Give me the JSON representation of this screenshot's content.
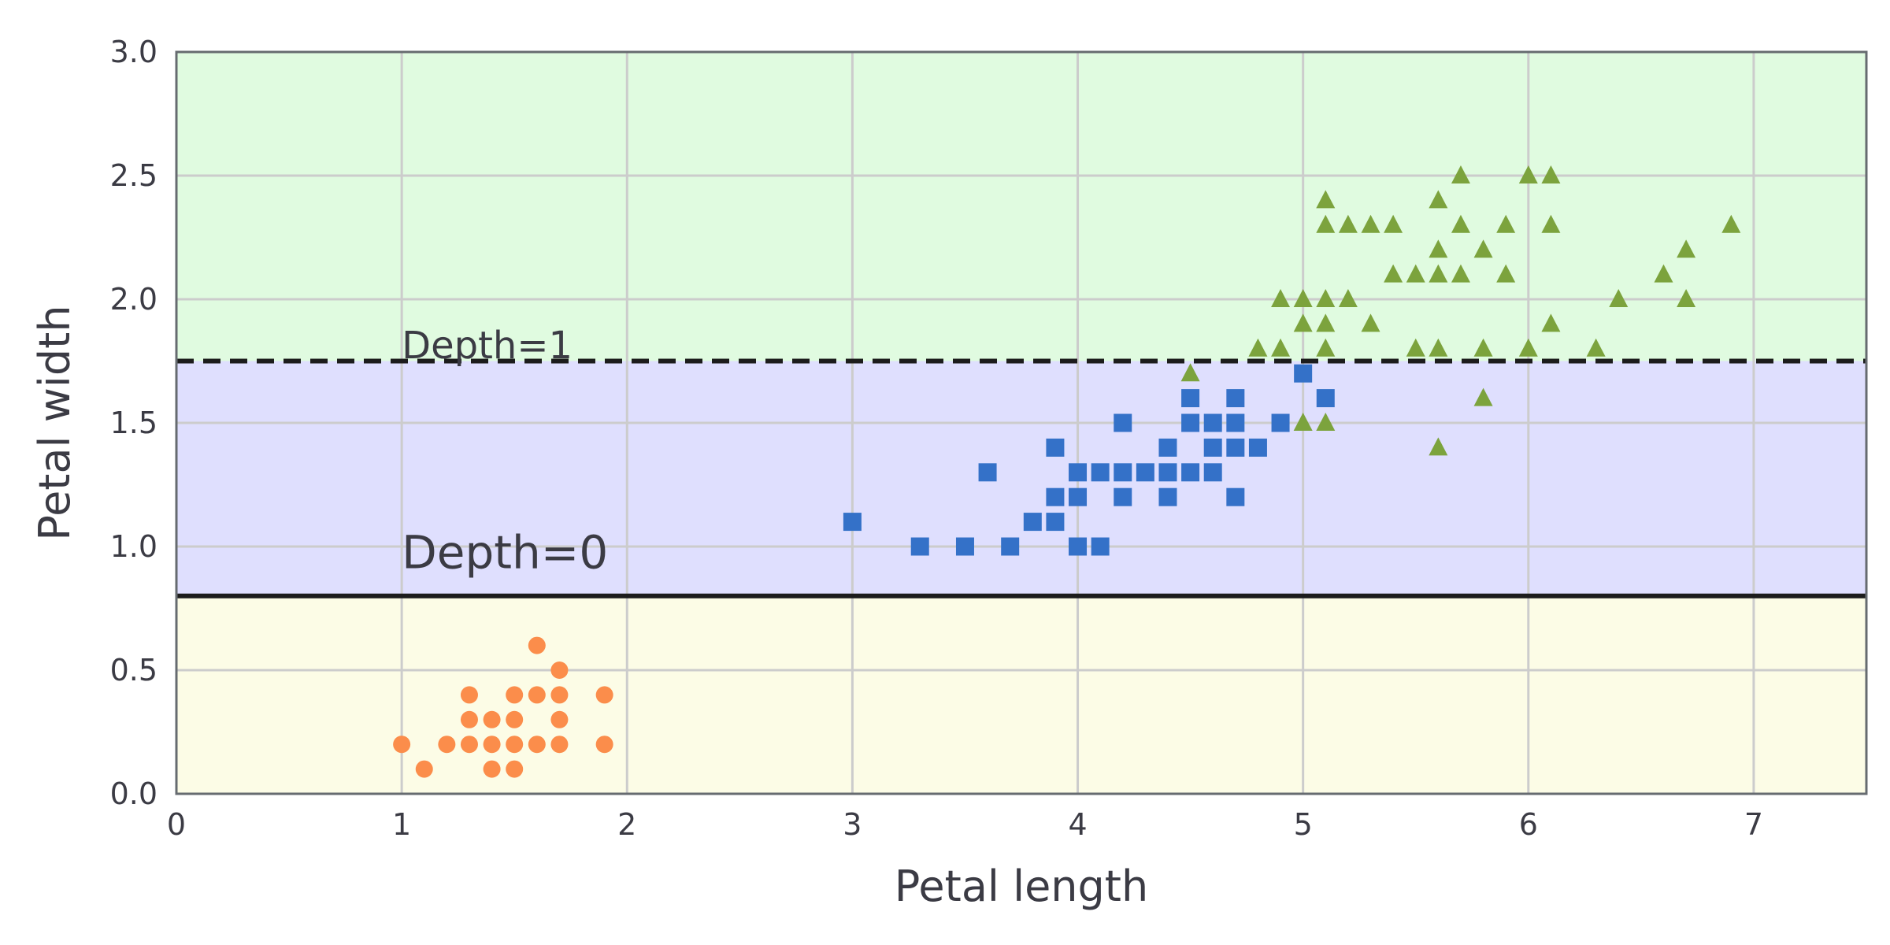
{
  "chart_data": {
    "type": "scatter",
    "xlabel": "Petal length",
    "ylabel": "Petal width",
    "xlim": [
      0,
      7.5
    ],
    "ylim": [
      0,
      3.0
    ],
    "x_ticks": [
      "0",
      "1",
      "2",
      "3",
      "4",
      "5",
      "6",
      "7"
    ],
    "y_ticks": [
      "0.0",
      "0.5",
      "1.0",
      "1.5",
      "2.0",
      "2.5",
      "3.0"
    ],
    "grid": true,
    "colors": {
      "region_bottom": "#fcfce6",
      "region_middle": "#dfdffe",
      "region_top": "#e0fbe0",
      "grid": "#cccccc",
      "frame": "#666b70",
      "setosa": "#fb8d4b",
      "versicolor": "#3471c8",
      "virginica": "#7ca33d",
      "boundary": "#1c1c1c"
    },
    "decision_boundaries": [
      {
        "label": "Depth=0",
        "y": 0.8,
        "style": "solid"
      },
      {
        "label": "Depth=1",
        "y": 1.75,
        "style": "dashed"
      }
    ],
    "annotations": [
      {
        "text": "Depth=0",
        "x": 1.0,
        "y": 0.9
      },
      {
        "text": "Depth=1",
        "x": 1.0,
        "y": 1.8
      }
    ],
    "series": [
      {
        "marker": "circle",
        "points": [
          [
            1.0,
            0.2
          ],
          [
            1.1,
            0.1
          ],
          [
            1.2,
            0.2
          ],
          [
            1.3,
            0.2
          ],
          [
            1.3,
            0.3
          ],
          [
            1.3,
            0.4
          ],
          [
            1.4,
            0.1
          ],
          [
            1.4,
            0.2
          ],
          [
            1.4,
            0.3
          ],
          [
            1.5,
            0.1
          ],
          [
            1.5,
            0.2
          ],
          [
            1.5,
            0.3
          ],
          [
            1.5,
            0.4
          ],
          [
            1.6,
            0.2
          ],
          [
            1.6,
            0.4
          ],
          [
            1.6,
            0.6
          ],
          [
            1.7,
            0.2
          ],
          [
            1.7,
            0.3
          ],
          [
            1.7,
            0.4
          ],
          [
            1.7,
            0.5
          ],
          [
            1.9,
            0.2
          ],
          [
            1.9,
            0.4
          ]
        ]
      },
      {
        "marker": "square",
        "points": [
          [
            3.0,
            1.1
          ],
          [
            3.3,
            1.0
          ],
          [
            3.5,
            1.0
          ],
          [
            3.6,
            1.3
          ],
          [
            3.7,
            1.0
          ],
          [
            3.8,
            1.1
          ],
          [
            3.9,
            1.1
          ],
          [
            3.9,
            1.2
          ],
          [
            3.9,
            1.4
          ],
          [
            4.0,
            1.0
          ],
          [
            4.0,
            1.2
          ],
          [
            4.0,
            1.3
          ],
          [
            4.1,
            1.0
          ],
          [
            4.1,
            1.3
          ],
          [
            4.2,
            1.2
          ],
          [
            4.2,
            1.3
          ],
          [
            4.2,
            1.5
          ],
          [
            4.3,
            1.3
          ],
          [
            4.4,
            1.2
          ],
          [
            4.4,
            1.3
          ],
          [
            4.4,
            1.4
          ],
          [
            4.5,
            1.3
          ],
          [
            4.5,
            1.5
          ],
          [
            4.5,
            1.6
          ],
          [
            4.6,
            1.3
          ],
          [
            4.6,
            1.4
          ],
          [
            4.6,
            1.5
          ],
          [
            4.7,
            1.2
          ],
          [
            4.7,
            1.4
          ],
          [
            4.7,
            1.5
          ],
          [
            4.7,
            1.6
          ],
          [
            4.8,
            1.4
          ],
          [
            4.9,
            1.5
          ],
          [
            5.0,
            1.7
          ],
          [
            5.1,
            1.6
          ]
        ]
      },
      {
        "marker": "triangle",
        "points": [
          [
            4.5,
            1.7
          ],
          [
            4.8,
            1.8
          ],
          [
            4.9,
            1.8
          ],
          [
            4.9,
            2.0
          ],
          [
            5.0,
            1.5
          ],
          [
            5.0,
            1.9
          ],
          [
            5.0,
            2.0
          ],
          [
            5.1,
            1.5
          ],
          [
            5.1,
            1.8
          ],
          [
            5.1,
            1.9
          ],
          [
            5.1,
            2.0
          ],
          [
            5.1,
            2.3
          ],
          [
            5.1,
            2.4
          ],
          [
            5.2,
            2.0
          ],
          [
            5.2,
            2.3
          ],
          [
            5.3,
            1.9
          ],
          [
            5.3,
            2.3
          ],
          [
            5.4,
            2.1
          ],
          [
            5.4,
            2.3
          ],
          [
            5.5,
            1.8
          ],
          [
            5.5,
            2.1
          ],
          [
            5.6,
            1.4
          ],
          [
            5.6,
            1.8
          ],
          [
            5.6,
            2.1
          ],
          [
            5.6,
            2.2
          ],
          [
            5.6,
            2.4
          ],
          [
            5.7,
            2.1
          ],
          [
            5.7,
            2.3
          ],
          [
            5.7,
            2.5
          ],
          [
            5.8,
            1.6
          ],
          [
            5.8,
            1.8
          ],
          [
            5.8,
            2.2
          ],
          [
            5.9,
            2.1
          ],
          [
            5.9,
            2.3
          ],
          [
            6.0,
            1.8
          ],
          [
            6.0,
            2.5
          ],
          [
            6.1,
            1.9
          ],
          [
            6.1,
            2.3
          ],
          [
            6.1,
            2.5
          ],
          [
            6.3,
            1.8
          ],
          [
            6.4,
            2.0
          ],
          [
            6.6,
            2.1
          ],
          [
            6.7,
            2.0
          ],
          [
            6.7,
            2.2
          ],
          [
            6.9,
            2.3
          ]
        ]
      }
    ]
  }
}
